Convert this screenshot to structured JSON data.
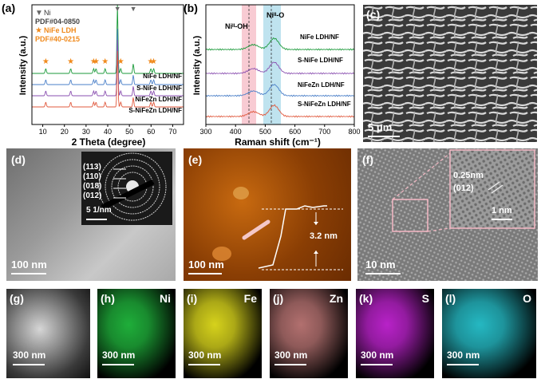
{
  "panels": {
    "a": {
      "label": "(a)",
      "ylabel": "Intensity (a.u.)",
      "xlabel": "2 Theta (degree)",
      "xticks": [
        "10",
        "20",
        "30",
        "40",
        "50",
        "60",
        "70"
      ],
      "legend": {
        "ni_marker": "▼",
        "ni": "Ni",
        "ni_pdf": "PDF#04-0850",
        "ldh_marker": "★",
        "ldh": "NiFe LDH",
        "ldh_pdf": "PDF#40-0215"
      },
      "series": [
        "NiFe LDH/NF",
        "S-NiFe LDH/NF",
        "NiFeZn LDH/NF",
        "S-NiFeZn LDH/NF"
      ]
    },
    "b": {
      "label": "(b)",
      "ylabel": "Intensity (a.u.)",
      "xlabel": "Raman shift (cm⁻¹)",
      "xticks": [
        "300",
        "400",
        "500",
        "600",
        "700",
        "800"
      ],
      "peak1": "Niᴵᴵ-OH",
      "peak2": "Niᴵᴵ-O",
      "series": [
        "NiFe LDH/NF",
        "S-NiFe LDH/NF",
        "NiFeZn LDH/NF",
        "S-NiFeZn LDH/NF"
      ]
    },
    "c": {
      "label": "(c)",
      "scale": "5 μm"
    },
    "d": {
      "label": "(d)",
      "scale": "100 nm",
      "saed_scale": "5 1/nm",
      "rings": [
        "(113)",
        "(110)",
        "(018)",
        "(012)"
      ]
    },
    "e": {
      "label": "(e)",
      "scale": "100 nm",
      "height": "3.2 nm"
    },
    "f": {
      "label": "(f)",
      "scale": "10 nm",
      "dspacing": "0.25nm",
      "plane": "(012)",
      "inset_scale": "1 nm"
    },
    "g": {
      "label": "(g)",
      "scale": "300 nm"
    },
    "h": {
      "label": "(h)",
      "scale": "300 nm",
      "element": "Ni",
      "color": "#1fae3a"
    },
    "i": {
      "label": "(i)",
      "scale": "300 nm",
      "element": "Fe",
      "color": "#d6d21c"
    },
    "j": {
      "label": "(j)",
      "scale": "300 nm",
      "element": "Zn",
      "color": "#b2706f"
    },
    "k": {
      "label": "(k)",
      "scale": "300 nm",
      "element": "S",
      "color": "#b822c8"
    },
    "l": {
      "label": "(l)",
      "scale": "300 nm",
      "element": "O",
      "color": "#25b8c2"
    }
  },
  "chart_data": [
    {
      "type": "line",
      "xlabel": "2 Theta (degree)",
      "ylabel": "Intensity (a.u.)",
      "xlim": [
        5,
        75
      ],
      "series": [
        {
          "name": "NiFe LDH/NF",
          "color": "#1b9a3a"
        },
        {
          "name": "S-NiFe LDH/NF",
          "color": "#4a7fc8"
        },
        {
          "name": "NiFeZn LDH/NF",
          "color": "#8a4fb0"
        },
        {
          "name": "S-NiFeZn LDH/NF",
          "color": "#e0583c"
        }
      ],
      "ni_peaks": [
        44.5,
        51.8
      ],
      "ldh_peaks": [
        11.4,
        22.9,
        33.5,
        34.6,
        38.8,
        46.0,
        59.9,
        61.2
      ]
    },
    {
      "type": "line",
      "xlabel": "Raman shift (cm⁻¹)",
      "ylabel": "Intensity (a.u.)",
      "xlim": [
        300,
        800
      ],
      "series": [
        {
          "name": "NiFe LDH/NF",
          "color": "#1b9a3a"
        },
        {
          "name": "S-NiFe LDH/NF",
          "color": "#8a4fb0"
        },
        {
          "name": "NiFeZn LDH/NF",
          "color": "#4a7fc8"
        },
        {
          "name": "S-NiFeZn LDH/NF",
          "color": "#e0583c"
        }
      ],
      "bands": [
        {
          "name": "Niᴵᴵ-OH",
          "center": 460
        },
        {
          "name": "Niᴵᴵ-O",
          "center": 530
        }
      ]
    }
  ]
}
